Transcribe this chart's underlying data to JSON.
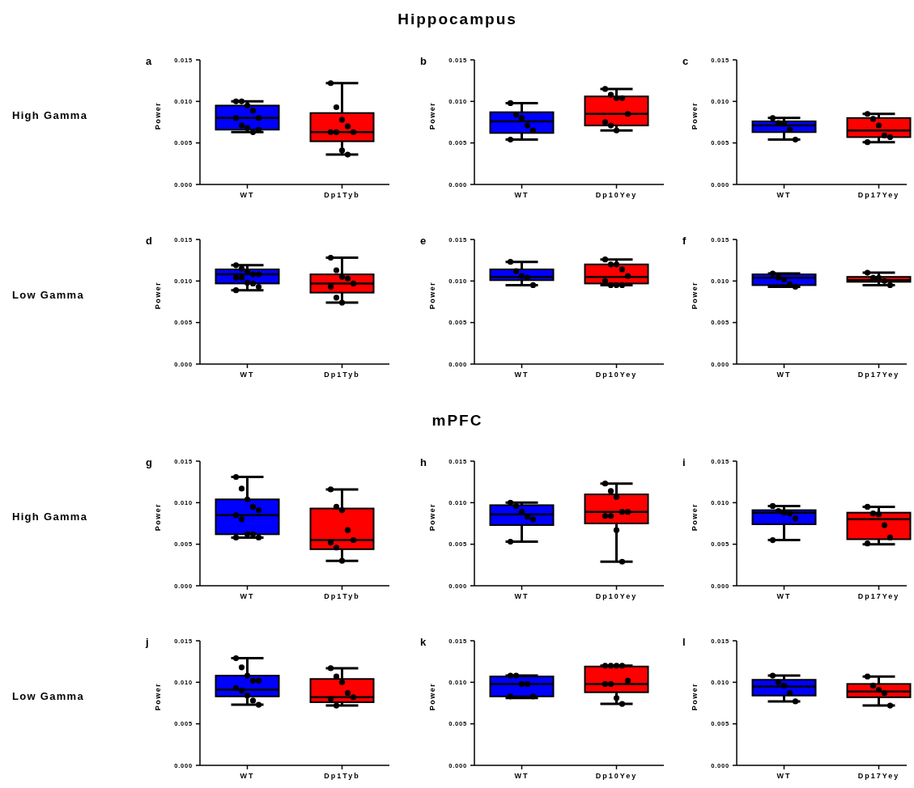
{
  "chart_data": [
    {
      "type": "box",
      "title": "a",
      "ylabel": "Power",
      "annotations": [
        "Hippocampus",
        "High Gamma"
      ],
      "categories": [
        "WT",
        "Dp1Tyb"
      ],
      "ylim": [
        0,
        0.015
      ],
      "yticks": [
        {
          "value": 0,
          "label": "0.000"
        },
        {
          "value": 0.005,
          "label": "0.005"
        },
        {
          "value": 0.01,
          "label": "0.010"
        },
        {
          "value": 0.015,
          "label": "0.015"
        }
      ],
      "marker": "circle",
      "series": [
        {
          "type": "box",
          "colors": [
            "#0000ff",
            "#ff0000"
          ],
          "boxes": [
            {
              "low": 0.0063,
              "q1": 0.0066,
              "median": 0.008,
              "q3": 0.0095,
              "high": 0.01
            },
            {
              "low": 0.0036,
              "q1": 0.0052,
              "median": 0.0063,
              "q3": 0.0086,
              "high": 0.0122
            }
          ]
        },
        {
          "type": "scatter",
          "color": "#000000",
          "x": [
            "WT",
            "WT",
            "WT",
            "WT",
            "WT",
            "WT",
            "WT",
            "WT",
            "WT",
            "WT",
            "Dp1Tyb",
            "Dp1Tyb",
            "Dp1Tyb",
            "Dp1Tyb",
            "Dp1Tyb",
            "Dp1Tyb",
            "Dp1Tyb",
            "Dp1Tyb",
            "Dp1Tyb"
          ],
          "values": [
            0.01,
            0.01,
            0.0095,
            0.0089,
            0.008,
            0.008,
            0.0071,
            0.0068,
            0.0063,
            0.0066,
            0.0122,
            0.0093,
            0.0078,
            0.007,
            0.0063,
            0.0063,
            0.0063,
            0.0041,
            0.0036
          ]
        }
      ]
    },
    {
      "type": "box",
      "title": "b",
      "ylabel": "Power",
      "categories": [
        "WT",
        "Dp10Yey"
      ],
      "ylim": [
        0,
        0.015
      ],
      "yticks": [
        {
          "value": 0,
          "label": "0.000"
        },
        {
          "value": 0.005,
          "label": "0.005"
        },
        {
          "value": 0.01,
          "label": "0.010"
        },
        {
          "value": 0.015,
          "label": "0.015"
        }
      ],
      "marker": "circle",
      "series": [
        {
          "type": "box",
          "colors": [
            "#0000ff",
            "#ff0000"
          ],
          "boxes": [
            {
              "low": 0.0054,
              "q1": 0.0062,
              "median": 0.0076,
              "q3": 0.0087,
              "high": 0.0098
            },
            {
              "low": 0.0065,
              "q1": 0.0071,
              "median": 0.0085,
              "q3": 0.0106,
              "high": 0.0115
            }
          ]
        },
        {
          "type": "scatter",
          "color": "#000000",
          "x": [
            "WT",
            "WT",
            "WT",
            "WT",
            "WT",
            "WT",
            "Dp10Yey",
            "Dp10Yey",
            "Dp10Yey",
            "Dp10Yey",
            "Dp10Yey",
            "Dp10Yey",
            "Dp10Yey",
            "Dp10Yey"
          ],
          "values": [
            0.0098,
            0.0084,
            0.008,
            0.0071,
            0.0065,
            0.0054,
            0.0115,
            0.0108,
            0.0104,
            0.0104,
            0.0085,
            0.0075,
            0.0071,
            0.0065
          ]
        }
      ]
    },
    {
      "type": "box",
      "title": "c",
      "ylabel": "Power",
      "categories": [
        "WT",
        "Dp17Yey"
      ],
      "ylim": [
        0,
        0.015
      ],
      "yticks": [
        {
          "value": 0,
          "label": "0.000"
        },
        {
          "value": 0.005,
          "label": "0.005"
        },
        {
          "value": 0.01,
          "label": "0.010"
        },
        {
          "value": 0.015,
          "label": "0.015"
        }
      ],
      "marker": "circle",
      "series": [
        {
          "type": "box",
          "colors": [
            "#0000ff",
            "#ff0000"
          ],
          "boxes": [
            {
              "low": 0.0054,
              "q1": 0.0063,
              "median": 0.0071,
              "q3": 0.0076,
              "high": 0.008
            },
            {
              "low": 0.0051,
              "q1": 0.0057,
              "median": 0.0065,
              "q3": 0.008,
              "high": 0.0085
            }
          ]
        },
        {
          "type": "scatter",
          "color": "#000000",
          "x": [
            "WT",
            "WT",
            "WT",
            "WT",
            "WT",
            "Dp17Yey",
            "Dp17Yey",
            "Dp17Yey",
            "Dp17Yey",
            "Dp17Yey",
            "Dp17Yey"
          ],
          "values": [
            0.008,
            0.0074,
            0.0073,
            0.0066,
            0.0054,
            0.0085,
            0.0079,
            0.0071,
            0.0059,
            0.0057,
            0.0051
          ]
        }
      ]
    },
    {
      "type": "box",
      "title": "d",
      "ylabel": "Power",
      "annotations": [
        "Low Gamma"
      ],
      "categories": [
        "WT",
        "Dp1Tyb"
      ],
      "ylim": [
        0,
        0.015
      ],
      "yticks": [
        {
          "value": 0,
          "label": "0.000"
        },
        {
          "value": 0.005,
          "label": "0.005"
        },
        {
          "value": 0.01,
          "label": "0.010"
        },
        {
          "value": 0.015,
          "label": "0.015"
        }
      ],
      "marker": "circle",
      "series": [
        {
          "type": "box",
          "colors": [
            "#0000ff",
            "#ff0000"
          ],
          "boxes": [
            {
              "low": 0.0089,
              "q1": 0.0097,
              "median": 0.0108,
              "q3": 0.0114,
              "high": 0.0119
            },
            {
              "low": 0.0074,
              "q1": 0.0086,
              "median": 0.0097,
              "q3": 0.0108,
              "high": 0.0128
            }
          ]
        },
        {
          "type": "scatter",
          "color": "#000000",
          "x": [
            "WT",
            "WT",
            "WT",
            "WT",
            "WT",
            "WT",
            "WT",
            "WT",
            "WT",
            "WT",
            "WT",
            "Dp1Tyb",
            "Dp1Tyb",
            "Dp1Tyb",
            "Dp1Tyb",
            "Dp1Tyb",
            "Dp1Tyb",
            "Dp1Tyb",
            "Dp1Tyb"
          ],
          "values": [
            0.0119,
            0.0115,
            0.0112,
            0.0108,
            0.0108,
            0.0104,
            0.0104,
            0.0098,
            0.0097,
            0.0093,
            0.0089,
            0.0128,
            0.0113,
            0.0105,
            0.0103,
            0.0097,
            0.0093,
            0.008,
            0.0074
          ]
        }
      ]
    },
    {
      "type": "box",
      "title": "e",
      "ylabel": "Power",
      "categories": [
        "WT",
        "Dp10Yey"
      ],
      "ylim": [
        0,
        0.015
      ],
      "yticks": [
        {
          "value": 0,
          "label": "0.000"
        },
        {
          "value": 0.005,
          "label": "0.005"
        },
        {
          "value": 0.01,
          "label": "0.010"
        },
        {
          "value": 0.015,
          "label": "0.015"
        }
      ],
      "marker": "circle",
      "series": [
        {
          "type": "box",
          "colors": [
            "#0000ff",
            "#ff0000"
          ],
          "boxes": [
            {
              "low": 0.0095,
              "q1": 0.0101,
              "median": 0.0105,
              "q3": 0.0114,
              "high": 0.0123
            },
            {
              "low": 0.0095,
              "q1": 0.0097,
              "median": 0.0105,
              "q3": 0.012,
              "high": 0.0126
            }
          ]
        },
        {
          "type": "scatter",
          "color": "#000000",
          "x": [
            "WT",
            "WT",
            "WT",
            "WT",
            "WT",
            "Dp10Yey",
            "Dp10Yey",
            "Dp10Yey",
            "Dp10Yey",
            "Dp10Yey",
            "Dp10Yey",
            "Dp10Yey",
            "Dp10Yey",
            "Dp10Yey"
          ],
          "values": [
            0.0123,
            0.0112,
            0.0106,
            0.0104,
            0.0095,
            0.0126,
            0.012,
            0.012,
            0.0114,
            0.0106,
            0.01,
            0.0095,
            0.0095,
            0.0095
          ]
        }
      ]
    },
    {
      "type": "box",
      "title": "f",
      "ylabel": "Power",
      "categories": [
        "WT",
        "Dp17Yey"
      ],
      "ylim": [
        0,
        0.015
      ],
      "yticks": [
        {
          "value": 0,
          "label": "0.000"
        },
        {
          "value": 0.005,
          "label": "0.005"
        },
        {
          "value": 0.01,
          "label": "0.010"
        },
        {
          "value": 0.015,
          "label": "0.015"
        }
      ],
      "marker": "circle",
      "series": [
        {
          "type": "box",
          "colors": [
            "#0000ff",
            "#ff0000"
          ],
          "boxes": [
            {
              "low": 0.0093,
              "q1": 0.0095,
              "median": 0.0104,
              "q3": 0.0108,
              "high": 0.0109
            },
            {
              "low": 0.0095,
              "q1": 0.0099,
              "median": 0.0101,
              "q3": 0.0105,
              "high": 0.011
            }
          ]
        },
        {
          "type": "scatter",
          "color": "#000000",
          "x": [
            "WT",
            "WT",
            "WT",
            "WT",
            "WT",
            "Dp17Yey",
            "Dp17Yey",
            "Dp17Yey",
            "Dp17Yey",
            "Dp17Yey"
          ],
          "values": [
            0.0109,
            0.0104,
            0.0102,
            0.0096,
            0.0093,
            0.011,
            0.0104,
            0.0104,
            0.01,
            0.0095
          ]
        }
      ]
    },
    {
      "type": "box",
      "title": "g",
      "ylabel": "Power",
      "annotations": [
        "mPFC",
        "High Gamma"
      ],
      "categories": [
        "WT",
        "Dp1Tyb"
      ],
      "ylim": [
        0,
        0.015
      ],
      "yticks": [
        {
          "value": 0,
          "label": "0.000"
        },
        {
          "value": 0.005,
          "label": "0.005"
        },
        {
          "value": 0.01,
          "label": "0.010"
        },
        {
          "value": 0.015,
          "label": "0.015"
        }
      ],
      "marker": "circle",
      "series": [
        {
          "type": "box",
          "colors": [
            "#0000ff",
            "#ff0000"
          ],
          "boxes": [
            {
              "low": 0.0058,
              "q1": 0.0062,
              "median": 0.0085,
              "q3": 0.0104,
              "high": 0.0131
            },
            {
              "low": 0.003,
              "q1": 0.0044,
              "median": 0.0055,
              "q3": 0.0093,
              "high": 0.0116
            }
          ]
        },
        {
          "type": "scatter",
          "color": "#000000",
          "x": [
            "WT",
            "WT",
            "WT",
            "WT",
            "WT",
            "WT",
            "WT",
            "WT",
            "WT",
            "WT",
            "WT",
            "Dp1Tyb",
            "Dp1Tyb",
            "Dp1Tyb",
            "Dp1Tyb",
            "Dp1Tyb",
            "Dp1Tyb",
            "Dp1Tyb",
            "Dp1Tyb"
          ],
          "values": [
            0.0131,
            0.0117,
            0.0104,
            0.0095,
            0.0091,
            0.0085,
            0.008,
            0.0062,
            0.0062,
            0.0058,
            0.0058,
            0.0116,
            0.0095,
            0.0091,
            0.0067,
            0.0055,
            0.0052,
            0.0046,
            0.003
          ]
        }
      ]
    },
    {
      "type": "box",
      "title": "h",
      "ylabel": "Power",
      "categories": [
        "WT",
        "Dp10Yey"
      ],
      "ylim": [
        0,
        0.015
      ],
      "yticks": [
        {
          "value": 0,
          "label": "0.000"
        },
        {
          "value": 0.005,
          "label": "0.005"
        },
        {
          "value": 0.01,
          "label": "0.010"
        },
        {
          "value": 0.015,
          "label": "0.015"
        }
      ],
      "marker": "circle",
      "series": [
        {
          "type": "box",
          "colors": [
            "#0000ff",
            "#ff0000"
          ],
          "boxes": [
            {
              "low": 0.0053,
              "q1": 0.0073,
              "median": 0.0086,
              "q3": 0.0097,
              "high": 0.01
            },
            {
              "low": 0.0029,
              "q1": 0.0075,
              "median": 0.0089,
              "q3": 0.011,
              "high": 0.0123
            }
          ]
        },
        {
          "type": "scatter",
          "color": "#000000",
          "x": [
            "WT",
            "WT",
            "WT",
            "WT",
            "WT",
            "WT",
            "Dp10Yey",
            "Dp10Yey",
            "Dp10Yey",
            "Dp10Yey",
            "Dp10Yey",
            "Dp10Yey",
            "Dp10Yey",
            "Dp10Yey",
            "Dp10Yey"
          ],
          "values": [
            0.01,
            0.0096,
            0.0089,
            0.0083,
            0.008,
            0.0053,
            0.0123,
            0.0114,
            0.0107,
            0.0089,
            0.0089,
            0.0084,
            0.0084,
            0.0067,
            0.0029
          ]
        }
      ]
    },
    {
      "type": "box",
      "title": "i",
      "ylabel": "Power",
      "categories": [
        "WT",
        "Dp17Yey"
      ],
      "ylim": [
        0,
        0.015
      ],
      "yticks": [
        {
          "value": 0,
          "label": "0.000"
        },
        {
          "value": 0.005,
          "label": "0.005"
        },
        {
          "value": 0.01,
          "label": "0.010"
        },
        {
          "value": 0.015,
          "label": "0.015"
        }
      ],
      "marker": "circle",
      "series": [
        {
          "type": "box",
          "colors": [
            "#0000ff",
            "#ff0000"
          ],
          "boxes": [
            {
              "low": 0.0055,
              "q1": 0.0074,
              "median": 0.0088,
              "q3": 0.0091,
              "high": 0.0096
            },
            {
              "low": 0.005,
              "q1": 0.0056,
              "median": 0.008,
              "q3": 0.0088,
              "high": 0.0095
            }
          ]
        },
        {
          "type": "scatter",
          "color": "#000000",
          "x": [
            "WT",
            "WT",
            "WT",
            "WT",
            "WT",
            "WT",
            "Dp17Yey",
            "Dp17Yey",
            "Dp17Yey",
            "Dp17Yey",
            "Dp17Yey",
            "Dp17Yey"
          ],
          "values": [
            0.0096,
            0.009,
            0.0088,
            0.0087,
            0.0081,
            0.0055,
            0.0095,
            0.0087,
            0.0086,
            0.0073,
            0.0058,
            0.0051
          ]
        }
      ]
    },
    {
      "type": "box",
      "title": "j",
      "ylabel": "Power",
      "annotations": [
        "Low Gamma"
      ],
      "categories": [
        "WT",
        "Dp1Tyb"
      ],
      "ylim": [
        0,
        0.015
      ],
      "yticks": [
        {
          "value": 0,
          "label": "0.000"
        },
        {
          "value": 0.005,
          "label": "0.005"
        },
        {
          "value": 0.01,
          "label": "0.010"
        },
        {
          "value": 0.015,
          "label": "0.015"
        }
      ],
      "marker": "circle",
      "series": [
        {
          "type": "box",
          "colors": [
            "#0000ff",
            "#ff0000"
          ],
          "boxes": [
            {
              "low": 0.0073,
              "q1": 0.0083,
              "median": 0.0091,
              "q3": 0.0108,
              "high": 0.0129
            },
            {
              "low": 0.0072,
              "q1": 0.0076,
              "median": 0.0082,
              "q3": 0.0104,
              "high": 0.0117
            }
          ]
        },
        {
          "type": "scatter",
          "color": "#000000",
          "x": [
            "WT",
            "WT",
            "WT",
            "WT",
            "WT",
            "WT",
            "WT",
            "WT",
            "WT",
            "WT",
            "Dp1Tyb",
            "Dp1Tyb",
            "Dp1Tyb",
            "Dp1Tyb",
            "Dp1Tyb",
            "Dp1Tyb",
            "Dp1Tyb"
          ],
          "values": [
            0.0129,
            0.0118,
            0.0108,
            0.0102,
            0.0102,
            0.0093,
            0.009,
            0.0084,
            0.0078,
            0.0073,
            0.0117,
            0.0107,
            0.01,
            0.0087,
            0.0082,
            0.008,
            0.0072
          ]
        }
      ]
    },
    {
      "type": "box",
      "title": "k",
      "ylabel": "Power",
      "categories": [
        "WT",
        "Dp10Yey"
      ],
      "ylim": [
        0,
        0.015
      ],
      "yticks": [
        {
          "value": 0,
          "label": "0.000"
        },
        {
          "value": 0.005,
          "label": "0.005"
        },
        {
          "value": 0.01,
          "label": "0.010"
        },
        {
          "value": 0.015,
          "label": "0.015"
        }
      ],
      "marker": "circle",
      "series": [
        {
          "type": "box",
          "colors": [
            "#0000ff",
            "#ff0000"
          ],
          "boxes": [
            {
              "low": 0.0081,
              "q1": 0.0083,
              "median": 0.0098,
              "q3": 0.0107,
              "high": 0.0108
            },
            {
              "low": 0.0074,
              "q1": 0.0088,
              "median": 0.0098,
              "q3": 0.0119,
              "high": 0.012
            }
          ]
        },
        {
          "type": "scatter",
          "color": "#000000",
          "x": [
            "WT",
            "WT",
            "WT",
            "WT",
            "WT",
            "WT",
            "Dp10Yey",
            "Dp10Yey",
            "Dp10Yey",
            "Dp10Yey",
            "Dp10Yey",
            "Dp10Yey",
            "Dp10Yey",
            "Dp10Yey",
            "Dp10Yey"
          ],
          "values": [
            0.0108,
            0.0108,
            0.0098,
            0.0098,
            0.0083,
            0.0083,
            0.012,
            0.012,
            0.012,
            0.012,
            0.0102,
            0.0098,
            0.0098,
            0.0081,
            0.0074
          ]
        }
      ]
    },
    {
      "type": "box",
      "title": "l",
      "ylabel": "Power",
      "categories": [
        "WT",
        "Dp17Yey"
      ],
      "ylim": [
        0,
        0.015
      ],
      "yticks": [
        {
          "value": 0,
          "label": "0.000"
        },
        {
          "value": 0.005,
          "label": "0.005"
        },
        {
          "value": 0.01,
          "label": "0.010"
        },
        {
          "value": 0.015,
          "label": "0.015"
        }
      ],
      "marker": "circle",
      "series": [
        {
          "type": "box",
          "colors": [
            "#0000ff",
            "#ff0000"
          ],
          "boxes": [
            {
              "low": 0.0077,
              "q1": 0.0084,
              "median": 0.0095,
              "q3": 0.0103,
              "high": 0.0108
            },
            {
              "low": 0.0072,
              "q1": 0.0082,
              "median": 0.0089,
              "q3": 0.0098,
              "high": 0.0107
            }
          ]
        },
        {
          "type": "scatter",
          "color": "#000000",
          "x": [
            "WT",
            "WT",
            "WT",
            "WT",
            "WT",
            "Dp17Yey",
            "Dp17Yey",
            "Dp17Yey",
            "Dp17Yey",
            "Dp17Yey"
          ],
          "values": [
            0.0108,
            0.01,
            0.0096,
            0.0087,
            0.0077,
            0.0107,
            0.0096,
            0.0091,
            0.0087,
            0.0072
          ]
        }
      ]
    }
  ]
}
